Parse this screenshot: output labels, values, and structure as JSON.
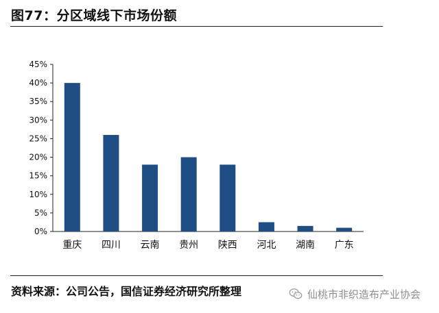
{
  "header": {
    "title": "图77：分区域线下市场份额"
  },
  "footer": {
    "source": "资料来源：公司公告，国信证券经济研究所整理",
    "watermark": "仙桃市非织造布产业协会",
    "watermark_icon": "wechat-icon"
  },
  "colors": {
    "bar": "#1f4e85",
    "axis": "#222222"
  },
  "chart_data": {
    "type": "bar",
    "categories": [
      "重庆",
      "四川",
      "云南",
      "贵州",
      "陕西",
      "河北",
      "湖南",
      "广东"
    ],
    "values": [
      40,
      26,
      18,
      20,
      18,
      2.5,
      1.5,
      1
    ],
    "ylim": [
      0,
      45
    ],
    "yticks": [
      0,
      5,
      10,
      15,
      20,
      25,
      30,
      35,
      40,
      45
    ],
    "ytick_labels": [
      "0%",
      "5%",
      "10%",
      "15%",
      "20%",
      "25%",
      "30%",
      "35%",
      "40%",
      "45%"
    ],
    "grid": false,
    "legend": "none"
  }
}
